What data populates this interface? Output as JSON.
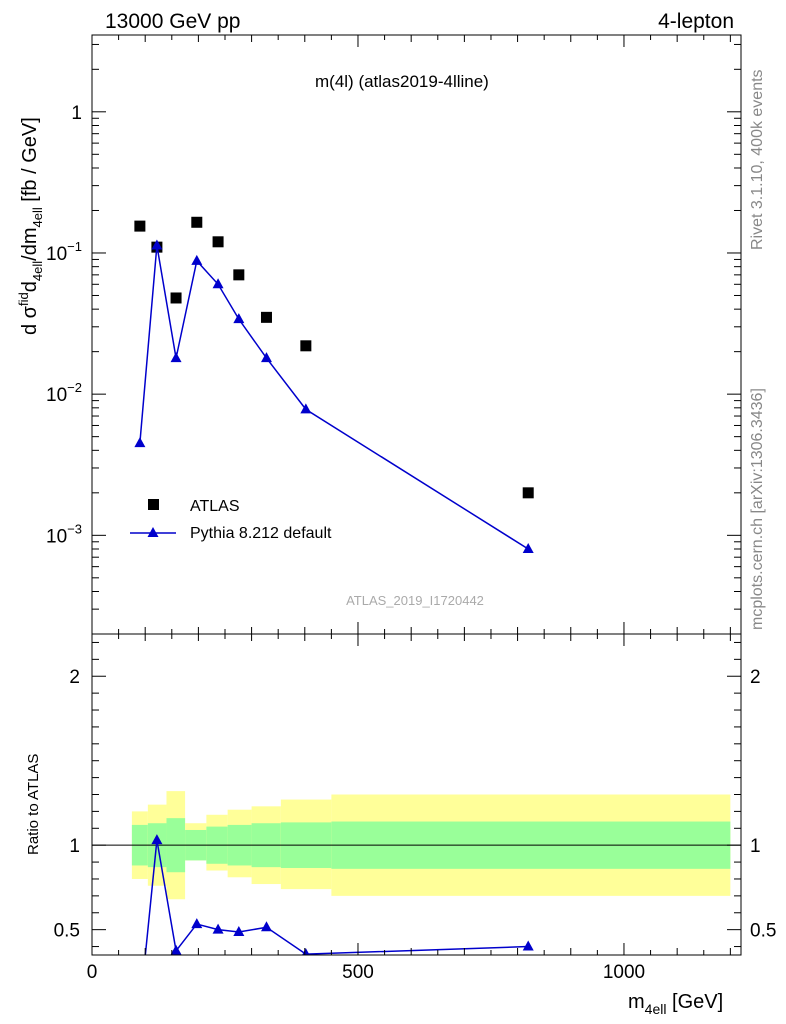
{
  "header": {
    "left": "13000 GeV pp",
    "right": "4-lepton"
  },
  "side_text": {
    "rivet": "Rivet 3.1.10,  400k events",
    "mcplots": "mcplots.cern.ch [arXiv:1306.3436]"
  },
  "chart_data": [
    {
      "type": "scatter",
      "title": "m(4l) (atlas2019-4lline)",
      "watermark": "ATLAS_2019_I1720442",
      "ylabel": "d σ^fid_4ell/dm_4ell [fb / GeV]",
      "yscale": "log",
      "xlim": [
        0,
        1220
      ],
      "ylim": [
        0.0002,
        3.5
      ],
      "yticks": [
        {
          "v": 0.001,
          "base": "10",
          "exp": "−3"
        },
        {
          "v": 0.01,
          "base": "10",
          "exp": "−2"
        },
        {
          "v": 0.1,
          "base": "10",
          "exp": "−1"
        },
        {
          "v": 1,
          "base": "1",
          "exp": ""
        }
      ],
      "legend": {
        "position": "bottom-left"
      },
      "series": [
        {
          "name": "ATLAS",
          "marker": "square",
          "color": "#000000",
          "x": [
            90,
            122,
            158,
            197,
            237,
            276,
            328,
            402,
            820
          ],
          "y": [
            0.155,
            0.11,
            0.048,
            0.165,
            0.12,
            0.07,
            0.035,
            0.022,
            0.002
          ]
        },
        {
          "name": "Pythia 8.212 default",
          "marker": "triangle",
          "color": "#0000cc",
          "x": [
            90,
            122,
            158,
            197,
            237,
            276,
            328,
            402,
            820
          ],
          "y": [
            0.0045,
            0.113,
            0.018,
            0.088,
            0.06,
            0.034,
            0.018,
            0.0078,
            0.0008
          ]
        }
      ]
    },
    {
      "type": "line",
      "ylabel": "Ratio to ATLAS",
      "xlabel": "m_4ell [GeV]",
      "xlim": [
        0,
        1220
      ],
      "ylim": [
        0.35,
        2.25
      ],
      "xticks": [
        0,
        500,
        1000
      ],
      "yticks": [
        0.5,
        1,
        2
      ],
      "reference_line": 1,
      "bands": [
        {
          "edges": [
            75,
            105,
            140,
            175,
            215,
            255,
            300,
            355,
            450,
            1200
          ],
          "stat_lo": [
            0.88,
            0.87,
            0.84,
            0.91,
            0.89,
            0.88,
            0.87,
            0.865,
            0.86
          ],
          "stat_hi": [
            1.12,
            1.13,
            1.16,
            1.09,
            1.11,
            1.12,
            1.13,
            1.135,
            1.14
          ],
          "tot_lo": [
            0.8,
            0.76,
            0.68,
            0.91,
            0.85,
            0.81,
            0.77,
            0.74,
            0.7
          ],
          "tot_hi": [
            1.2,
            1.24,
            1.32,
            1.13,
            1.18,
            1.21,
            1.23,
            1.27,
            1.3
          ]
        }
      ],
      "band_colors": {
        "stat": "#99ff99",
        "total": "#ffff99"
      },
      "series": [
        {
          "name": "Pythia 8.212 default",
          "color": "#0000cc",
          "x": [
            90,
            122,
            158,
            197,
            237,
            276,
            328,
            402,
            820
          ],
          "y": [
            0.029,
            1.03,
            0.375,
            0.533,
            0.5,
            0.486,
            0.514,
            0.355,
            0.4
          ]
        }
      ]
    }
  ]
}
